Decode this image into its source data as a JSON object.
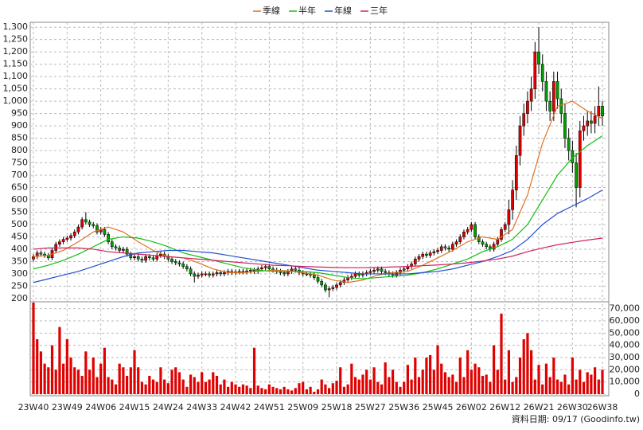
{
  "chart_data": {
    "type": "candlestick",
    "legend": [
      "季線",
      "半年",
      "年線",
      "三年"
    ],
    "footer": "資料日期: 09/17 (Goodinfo.tw)",
    "grid": true,
    "categories": [
      "23W40",
      null,
      null,
      null,
      null,
      null,
      null,
      null,
      null,
      "23W49",
      null,
      null,
      null,
      null,
      null,
      null,
      null,
      null,
      "24W06",
      null,
      null,
      null,
      null,
      null,
      null,
      null,
      null,
      "24W15",
      null,
      null,
      null,
      null,
      null,
      null,
      null,
      null,
      "24W24",
      null,
      null,
      null,
      null,
      null,
      null,
      null,
      null,
      "24W33",
      null,
      null,
      null,
      null,
      null,
      null,
      null,
      null,
      "24W42",
      null,
      null,
      null,
      null,
      null,
      null,
      null,
      null,
      "24W51",
      null,
      null,
      null,
      null,
      null,
      null,
      null,
      null,
      "25W09",
      null,
      null,
      null,
      null,
      null,
      null,
      null,
      null,
      "25W18",
      null,
      null,
      null,
      null,
      null,
      null,
      null,
      null,
      "25W27",
      null,
      null,
      null,
      null,
      null,
      null,
      null,
      null,
      "25W36",
      null,
      null,
      null,
      null,
      null,
      null,
      null,
      null,
      "25W45",
      null,
      null,
      null,
      null,
      null,
      null,
      null,
      null,
      "26W02",
      null,
      null,
      null,
      null,
      null,
      null,
      null,
      null,
      "26W12",
      null,
      null,
      null,
      null,
      null,
      null,
      null,
      null,
      "26W21",
      null,
      null,
      null,
      null,
      null,
      null,
      null,
      null,
      "26W30",
      null,
      null,
      null,
      null,
      null,
      null,
      null,
      "26W38"
    ],
    "open": [
      360,
      370,
      385,
      380,
      375,
      365,
      395,
      420,
      430,
      440,
      445,
      455,
      470,
      490,
      520,
      510,
      500,
      495,
      470,
      480,
      460,
      430,
      410,
      405,
      395,
      400,
      380,
      365,
      370,
      360,
      355,
      370,
      365,
      360,
      375,
      380,
      370,
      360,
      350,
      345,
      340,
      330,
      320,
      300,
      290,
      295,
      300,
      300,
      295,
      300,
      305,
      300,
      305,
      310,
      305,
      308,
      310,
      308,
      312,
      315,
      310,
      320,
      325,
      330,
      320,
      315,
      310,
      305,
      300,
      310,
      320,
      315,
      305,
      300,
      300,
      295,
      285,
      270,
      255,
      235,
      240,
      245,
      255,
      265,
      275,
      285,
      290,
      300,
      295,
      300,
      305,
      310,
      315,
      320,
      310,
      305,
      300,
      295,
      305,
      315,
      320,
      330,
      340,
      360,
      370,
      380,
      375,
      385,
      390,
      395,
      410,
      405,
      400,
      420,
      430,
      450,
      470,
      480,
      500,
      450,
      430,
      420,
      410,
      400,
      420,
      440,
      480,
      500,
      560,
      640,
      780,
      900,
      950,
      1000,
      1050,
      1200,
      1150,
      1080,
      1000,
      960,
      1080,
      1010,
      950,
      850,
      800,
      750,
      650,
      880,
      900,
      920,
      910,
      940,
      980
    ],
    "high": [
      380,
      395,
      395,
      390,
      385,
      405,
      430,
      440,
      450,
      455,
      465,
      480,
      500,
      530,
      550,
      520,
      510,
      505,
      490,
      490,
      470,
      440,
      420,
      415,
      410,
      410,
      390,
      380,
      380,
      370,
      380,
      380,
      375,
      385,
      390,
      390,
      380,
      370,
      360,
      355,
      350,
      340,
      330,
      310,
      305,
      310,
      310,
      310,
      310,
      315,
      315,
      315,
      320,
      320,
      318,
      320,
      320,
      322,
      325,
      325,
      330,
      335,
      340,
      340,
      330,
      325,
      320,
      315,
      320,
      330,
      330,
      325,
      315,
      310,
      310,
      305,
      295,
      280,
      265,
      250,
      255,
      265,
      275,
      285,
      295,
      300,
      310,
      310,
      310,
      315,
      320,
      325,
      330,
      330,
      320,
      315,
      310,
      315,
      325,
      330,
      340,
      350,
      370,
      380,
      390,
      390,
      395,
      400,
      405,
      420,
      420,
      415,
      430,
      440,
      460,
      480,
      490,
      510,
      510,
      460,
      440,
      430,
      420,
      430,
      450,
      490,
      510,
      600,
      680,
      820,
      940,
      990,
      1040,
      1100,
      1240,
      1300,
      1190,
      1120,
      1040,
      1120,
      1120,
      1050,
      990,
      890,
      840,
      790,
      920,
      940,
      960,
      960,
      980,
      1060,
      1000
    ],
    "low": [
      350,
      360,
      370,
      365,
      355,
      355,
      385,
      410,
      420,
      430,
      435,
      445,
      460,
      480,
      500,
      490,
      485,
      460,
      460,
      450,
      420,
      400,
      395,
      385,
      385,
      370,
      355,
      355,
      350,
      345,
      345,
      355,
      350,
      350,
      365,
      360,
      350,
      340,
      335,
      330,
      320,
      310,
      290,
      265,
      280,
      285,
      290,
      285,
      285,
      290,
      290,
      290,
      295,
      295,
      295,
      298,
      298,
      298,
      302,
      300,
      300,
      310,
      315,
      310,
      305,
      300,
      295,
      290,
      290,
      300,
      305,
      295,
      290,
      290,
      285,
      275,
      260,
      245,
      225,
      205,
      230,
      235,
      245,
      255,
      265,
      275,
      280,
      285,
      285,
      290,
      295,
      300,
      305,
      300,
      295,
      290,
      285,
      285,
      295,
      305,
      310,
      320,
      330,
      350,
      360,
      365,
      365,
      375,
      380,
      385,
      395,
      390,
      390,
      410,
      420,
      440,
      460,
      470,
      440,
      420,
      410,
      400,
      390,
      390,
      410,
      430,
      470,
      460,
      520,
      600,
      740,
      860,
      910,
      960,
      1010,
      1110,
      1040,
      960,
      920,
      920,
      970,
      910,
      810,
      760,
      710,
      570,
      610,
      840,
      860,
      870,
      870,
      900,
      900
    ],
    "close": [
      370,
      385,
      380,
      375,
      365,
      395,
      420,
      430,
      440,
      445,
      455,
      470,
      490,
      520,
      510,
      500,
      495,
      470,
      480,
      460,
      430,
      410,
      405,
      395,
      400,
      380,
      365,
      370,
      360,
      355,
      370,
      365,
      360,
      375,
      380,
      370,
      360,
      350,
      345,
      340,
      330,
      320,
      300,
      290,
      295,
      300,
      300,
      295,
      300,
      305,
      300,
      305,
      310,
      305,
      308,
      310,
      308,
      312,
      315,
      310,
      320,
      325,
      330,
      320,
      315,
      310,
      305,
      300,
      310,
      320,
      315,
      305,
      300,
      300,
      295,
      285,
      270,
      255,
      235,
      240,
      245,
      255,
      265,
      275,
      285,
      290,
      300,
      295,
      300,
      305,
      310,
      315,
      320,
      310,
      305,
      300,
      295,
      305,
      315,
      320,
      330,
      340,
      360,
      370,
      380,
      375,
      385,
      390,
      395,
      410,
      405,
      400,
      420,
      430,
      450,
      470,
      480,
      500,
      450,
      430,
      420,
      410,
      400,
      420,
      440,
      480,
      500,
      560,
      640,
      780,
      900,
      950,
      1000,
      1050,
      1200,
      1150,
      1080,
      1000,
      960,
      1080,
      1010,
      950,
      850,
      800,
      750,
      650,
      880,
      900,
      920,
      910,
      940,
      980,
      940
    ],
    "up_color": "#e00000",
    "down_color": "#00a000",
    "volume": [
      75000,
      45000,
      35000,
      25000,
      22000,
      40000,
      20000,
      55000,
      25000,
      45000,
      30000,
      22000,
      20000,
      15000,
      35000,
      20000,
      30000,
      14000,
      25000,
      38000,
      14000,
      12000,
      8000,
      25000,
      22000,
      15000,
      22000,
      36000,
      22000,
      10000,
      8000,
      15000,
      12000,
      10000,
      22000,
      12000,
      9000,
      20000,
      22000,
      18000,
      12000,
      6000,
      16000,
      14000,
      10000,
      18000,
      10000,
      12000,
      18000,
      15000,
      8000,
      12000,
      6000,
      10000,
      8000,
      6000,
      8000,
      7000,
      5000,
      38000,
      7000,
      5000,
      4000,
      8000,
      6000,
      5000,
      4000,
      6000,
      4000,
      3000,
      5000,
      9000,
      10000,
      4000,
      6000,
      2000,
      4000,
      12000,
      8000,
      5000,
      9000,
      11000,
      22000,
      6000,
      8000,
      25000,
      14000,
      12000,
      16000,
      20000,
      12000,
      22000,
      10000,
      8000,
      26000,
      14000,
      20000,
      10000,
      6000,
      10000,
      24000,
      12000,
      30000,
      14000,
      20000,
      30000,
      32000,
      20000,
      40000,
      25000,
      18000,
      14000,
      16000,
      10000,
      30000,
      14000,
      36000,
      20000,
      25000,
      22000,
      15000,
      16000,
      10000,
      40000,
      20000,
      66000,
      12000,
      36000,
      10000,
      14000,
      30000,
      45000,
      50000,
      36000,
      12000,
      24000,
      8000,
      25000,
      14000,
      30000,
      12000,
      10000,
      16000,
      8000,
      30000,
      12000,
      20000,
      10000,
      18000,
      16000,
      22000,
      12000,
      20000
    ],
    "volume_color": "#e00000",
    "lines_x": [
      0,
      4,
      8,
      12,
      16,
      20,
      24,
      28,
      32,
      36,
      40,
      44,
      48,
      52,
      56,
      60,
      64,
      68,
      72,
      76,
      80,
      84,
      88,
      92,
      96,
      100,
      104,
      108,
      112,
      116,
      120,
      124,
      128,
      132,
      136,
      140,
      144,
      148,
      152
    ],
    "lines": [
      {
        "name": "季線",
        "color": "#e07020",
        "values": [
          370,
          375,
          395,
          430,
          470,
          490,
          470,
          430,
          395,
          370,
          365,
          345,
          320,
          305,
          305,
          310,
          315,
          312,
          305,
          295,
          275,
          265,
          275,
          295,
          305,
          310,
          335,
          365,
          395,
          430,
          450,
          440,
          480,
          620,
          830,
          980,
          1000,
          960,
          930
        ]
      },
      {
        "name": "半年",
        "color": "#10c010",
        "values": [
          320,
          335,
          355,
          380,
          410,
          440,
          450,
          445,
          430,
          410,
          385,
          370,
          355,
          340,
          325,
          315,
          310,
          310,
          310,
          305,
          295,
          285,
          280,
          285,
          290,
          295,
          305,
          320,
          340,
          360,
          390,
          410,
          440,
          500,
          600,
          700,
          770,
          820,
          860
        ]
      },
      {
        "name": "年線",
        "color": "#2050d0",
        "values": [
          265,
          280,
          295,
          310,
          330,
          350,
          370,
          385,
          390,
          395,
          395,
          390,
          385,
          375,
          365,
          355,
          345,
          335,
          325,
          315,
          310,
          305,
          300,
          300,
          300,
          300,
          305,
          310,
          320,
          335,
          350,
          370,
          395,
          440,
          500,
          545,
          575,
          605,
          640
        ]
      },
      {
        "name": "三年",
        "color": "#d02060",
        "values": [
          400,
          405,
          405,
          405,
          400,
          390,
          385,
          380,
          375,
          370,
          365,
          360,
          355,
          350,
          345,
          340,
          335,
          333,
          330,
          328,
          326,
          325,
          325,
          326,
          328,
          330,
          333,
          336,
          340,
          345,
          352,
          360,
          372,
          390,
          405,
          418,
          428,
          437,
          445
        ]
      }
    ],
    "ylim": [
      190,
      1320
    ],
    "yticks": [
      200,
      250,
      300,
      350,
      400,
      450,
      500,
      550,
      600,
      650,
      700,
      750,
      800,
      850,
      900,
      950,
      {
        "value": 1000,
        "label": "1,000"
      },
      {
        "value": 1050,
        "label": "1,050"
      },
      {
        "value": 1100,
        "label": "1,100"
      },
      {
        "value": 1150,
        "label": "1,150"
      },
      {
        "value": 1200,
        "label": "1,200"
      },
      {
        "value": 1250,
        "label": "1,250"
      },
      {
        "value": 1300,
        "label": "1,300"
      }
    ],
    "y2lim": [
      0,
      75000
    ],
    "y2ticks": [
      0,
      {
        "value": 10000,
        "label": "10,000"
      },
      {
        "value": 20000,
        "label": "20,000"
      },
      {
        "value": 30000,
        "label": "30,000"
      },
      {
        "value": 40000,
        "label": "40,000"
      },
      {
        "value": 50000,
        "label": "50,000"
      },
      {
        "value": 60000,
        "label": "60,000"
      },
      {
        "value": 70000,
        "label": "70,000"
      }
    ]
  }
}
